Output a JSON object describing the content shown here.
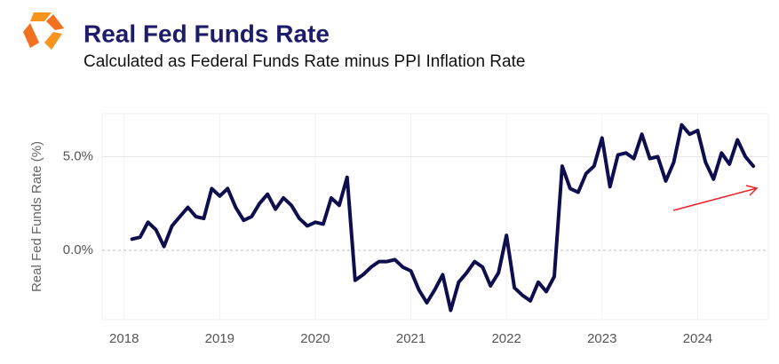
{
  "chart_data": {
    "type": "line",
    "title": "Real Fed Funds Rate",
    "subtitle": "Calculated as Federal Funds Rate minus PPI Inflation Rate",
    "y_label": "Real Fed Funds Rate (%)",
    "color": "#0e0e4f",
    "grid": true,
    "xlim": [
      2017.77,
      2024.74
    ],
    "xticks": [
      2018,
      2019,
      2020,
      2021,
      2022,
      2023,
      2024
    ],
    "ylim": [
      -3.7,
      7.3
    ],
    "yticks": [
      {
        "value": 0,
        "label": "0.0%"
      },
      {
        "value": 5,
        "label": "5.0%"
      }
    ],
    "x": [
      2018.083,
      2018.167,
      2018.25,
      2018.333,
      2018.417,
      2018.5,
      2018.583,
      2018.667,
      2018.75,
      2018.833,
      2018.917,
      2019,
      2019.083,
      2019.167,
      2019.25,
      2019.333,
      2019.417,
      2019.5,
      2019.583,
      2019.667,
      2019.75,
      2019.833,
      2019.917,
      2020,
      2020.083,
      2020.167,
      2020.25,
      2020.333,
      2020.417,
      2020.5,
      2020.583,
      2020.667,
      2020.75,
      2020.833,
      2020.917,
      2021,
      2021.083,
      2021.167,
      2021.25,
      2021.333,
      2021.417,
      2021.5,
      2021.583,
      2021.667,
      2021.75,
      2021.833,
      2021.917,
      2022,
      2022.083,
      2022.167,
      2022.25,
      2022.333,
      2022.417,
      2022.5,
      2022.583,
      2022.667,
      2022.75,
      2022.833,
      2022.917,
      2023,
      2023.083,
      2023.167,
      2023.25,
      2023.333,
      2023.417,
      2023.5,
      2023.583,
      2023.667,
      2023.75,
      2023.833,
      2023.917,
      2024,
      2024.083,
      2024.167,
      2024.25,
      2024.333,
      2024.417,
      2024.5,
      2024.583
    ],
    "values": [
      0.6,
      0.7,
      1.5,
      1.1,
      0.2,
      1.3,
      1.8,
      2.3,
      1.8,
      1.7,
      3.3,
      2.9,
      3.3,
      2.3,
      1.6,
      1.8,
      2.5,
      3.0,
      2.2,
      2.8,
      2.4,
      1.7,
      1.3,
      1.5,
      1.4,
      2.8,
      2.4,
      3.9,
      -1.6,
      -1.3,
      -0.9,
      -0.6,
      -0.6,
      -0.5,
      -0.9,
      -1.1,
      -2.1,
      -2.8,
      -2.1,
      -1.3,
      -3.2,
      -1.7,
      -1.2,
      -0.6,
      -0.9,
      -1.9,
      -1.2,
      0.8,
      -2.0,
      -2.4,
      -2.7,
      -1.7,
      -2.2,
      -1.4,
      4.5,
      3.3,
      3.1,
      4.1,
      4.5,
      6.0,
      3.4,
      5.1,
      5.2,
      4.9,
      6.2,
      4.9,
      5.0,
      3.7,
      4.7,
      6.7,
      6.2,
      6.4,
      4.7,
      3.8,
      5.2,
      4.6,
      5.9,
      5.0,
      4.5
    ]
  }
}
